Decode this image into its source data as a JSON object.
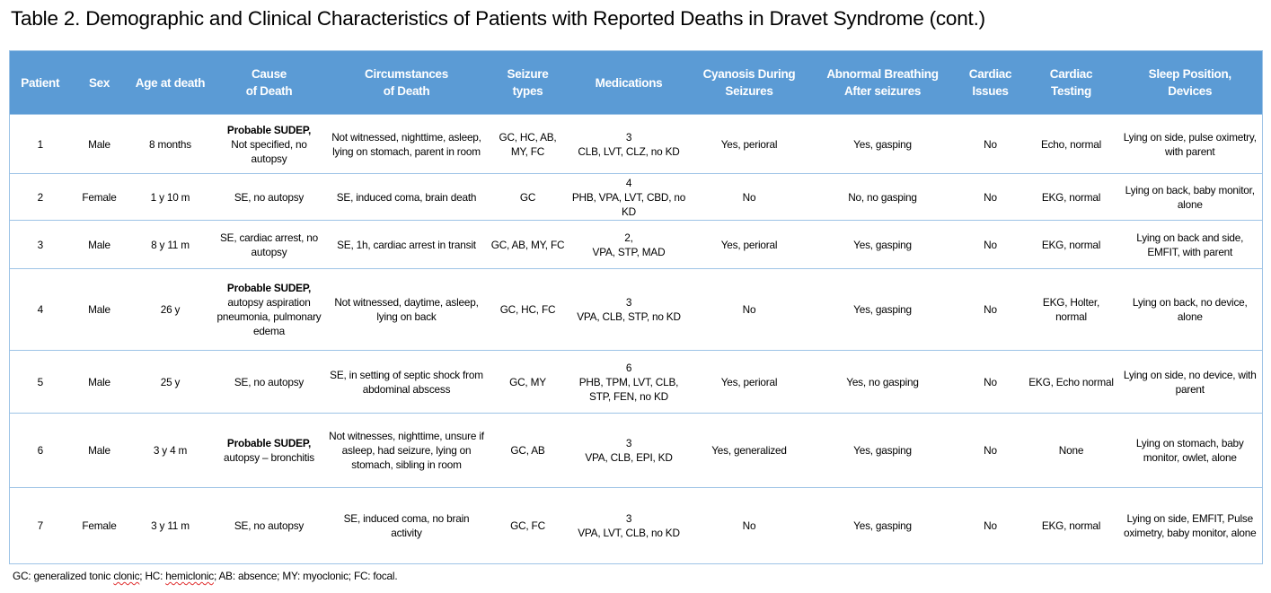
{
  "title": "Table 2. Demographic and Clinical Characteristics of Patients with Reported Deaths in Dravet Syndrome (cont.)",
  "colors": {
    "header_bg": "#5B9BD5",
    "border": "#9DC3E6"
  },
  "columns": [
    [
      "Patient"
    ],
    [
      "Sex"
    ],
    [
      "Age at death"
    ],
    [
      "Cause",
      "of Death"
    ],
    [
      "Circumstances",
      "of Death"
    ],
    [
      "Seizure",
      "types"
    ],
    [
      "Medications"
    ],
    [
      "Cyanosis During",
      "Seizures"
    ],
    [
      "Abnormal Breathing",
      "After seizures"
    ],
    [
      "Cardiac",
      "Issues"
    ],
    [
      "Cardiac",
      "Testing"
    ],
    [
      "Sleep Position,",
      "Devices"
    ]
  ],
  "rows": [
    {
      "patient": "1",
      "sex": "Male",
      "age": "8 months",
      "cause_bold": "Probable SUDEP,",
      "cause": "Not specified, no autopsy",
      "circumstances": "Not witnessed, nighttime, asleep, lying on stomach, parent in room",
      "seizures": "GC, HC, AB, MY, FC",
      "med_count": "3",
      "meds": "CLB, LVT, CLZ, no KD",
      "cyanosis": "Yes, perioral",
      "breathing": "Yes, gasping",
      "cardiac_issues": "No",
      "cardiac_testing": "Echo, normal",
      "sleep": "Lying on side, pulse oximetry, with parent"
    },
    {
      "patient": "2",
      "sex": "Female",
      "age": "1 y 10 m",
      "cause_bold": "",
      "cause": "SE, no autopsy",
      "circumstances": "SE, induced coma, brain death",
      "seizures": "GC",
      "med_count": "4",
      "meds": "PHB, VPA, LVT, CBD, no KD",
      "cyanosis": "No",
      "breathing": "No, no gasping",
      "cardiac_issues": "No",
      "cardiac_testing": "EKG, normal",
      "sleep": "Lying on back, baby monitor, alone"
    },
    {
      "patient": "3",
      "sex": "Male",
      "age": "8 y 11 m",
      "cause_bold": "",
      "cause": "SE, cardiac arrest, no autopsy",
      "circumstances": "SE, 1h, cardiac arrest in transit",
      "seizures": "GC, AB, MY, FC",
      "med_count": "2,",
      "meds": "VPA, STP, MAD",
      "cyanosis": "Yes, perioral",
      "breathing": "Yes, gasping",
      "cardiac_issues": "No",
      "cardiac_testing": "EKG, normal",
      "sleep": "Lying on back and side, EMFIT, with parent"
    },
    {
      "patient": "4",
      "sex": "Male",
      "age": "26 y",
      "cause_bold": "Probable SUDEP,",
      "cause": "autopsy aspiration pneumonia, pulmonary edema",
      "circumstances": "Not witnessed, daytime, asleep, lying on back",
      "seizures": "GC, HC, FC",
      "med_count": "3",
      "meds": "VPA, CLB, STP, no KD",
      "cyanosis": "No",
      "breathing": "Yes, gasping",
      "cardiac_issues": "No",
      "cardiac_testing": "EKG, Holter, normal",
      "sleep": "Lying on back, no device, alone"
    },
    {
      "patient": "5",
      "sex": "Male",
      "age": "25 y",
      "cause_bold": "",
      "cause": "SE, no autopsy",
      "circumstances": "SE, in setting of septic shock from abdominal abscess",
      "seizures": "GC, MY",
      "med_count": "6",
      "meds": "PHB, TPM, LVT, CLB, STP, FEN, no KD",
      "cyanosis": "Yes, perioral",
      "breathing": "Yes, no gasping",
      "cardiac_issues": "No",
      "cardiac_testing": "EKG, Echo normal",
      "sleep": "Lying on side, no device, with parent"
    },
    {
      "patient": "6",
      "sex": "Male",
      "age": "3 y 4 m",
      "cause_bold": "Probable SUDEP,",
      "cause": "autopsy – bronchitis",
      "circumstances": "Not witnesses, nighttime, unsure if asleep, had seizure, lying on stomach, sibling in room",
      "seizures": "GC, AB",
      "med_count": "3",
      "meds": "VPA, CLB, EPI, KD",
      "cyanosis": "Yes, generalized",
      "breathing": "Yes, gasping",
      "cardiac_issues": "No",
      "cardiac_testing": "None",
      "sleep": "Lying on stomach, baby monitor, owlet, alone"
    },
    {
      "patient": "7",
      "sex": "Female",
      "age": "3 y 11 m",
      "cause_bold": "",
      "cause": "SE, no autopsy",
      "circumstances": "SE, induced coma, no brain activity",
      "seizures": "GC, FC",
      "med_count": "3",
      "meds": "VPA, LVT, CLB, no KD",
      "cyanosis": "No",
      "breathing": "Yes, gasping",
      "cardiac_issues": "No",
      "cardiac_testing": "EKG, normal",
      "sleep": "Lying on side, EMFIT, Pulse oximetry, baby monitor, alone"
    }
  ],
  "footnote": {
    "p1": "GC: generalized tonic ",
    "w1": "clonic",
    "p2": "; HC: ",
    "w2": "hemiclonic",
    "p3": "; AB: absence; MY: myoclonic; FC: focal."
  }
}
